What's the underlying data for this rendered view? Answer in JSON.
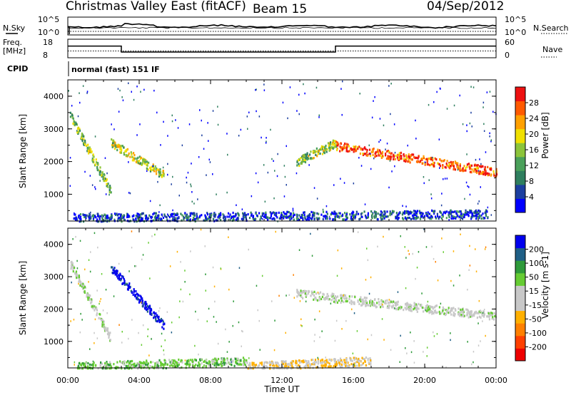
{
  "header": {
    "title": "Christmas Valley East (fitACF)",
    "beam": "Beam 15",
    "date": "04/Sep/2012"
  },
  "sky_panel": {
    "left_label": "N.Sky",
    "right_label": "N.Search",
    "left_ticks": [
      "10^5",
      "10^0"
    ],
    "right_ticks": [
      "10^5",
      "10^0"
    ]
  },
  "freq_panel": {
    "left_label_1": "Freq.",
    "left_label_2": "[MHz]",
    "right_label": "Nave",
    "left_ticks": [
      "18",
      "8"
    ],
    "right_ticks": [
      "60",
      "0"
    ]
  },
  "cpid": {
    "label": "CPID",
    "value": "normal (fast) 151 IF"
  },
  "x_axis": {
    "label": "Time UT",
    "ticks": [
      "00:00",
      "04:00",
      "08:00",
      "12:00",
      "16:00",
      "20:00",
      "00:00"
    ]
  },
  "chart_data": [
    {
      "type": "heatmap",
      "panel": "power",
      "ylabel": "Slant Range [km]",
      "yticks": [
        1000,
        2000,
        3000,
        4000
      ],
      "ylim": [
        180,
        4500
      ],
      "xlim": [
        0,
        24
      ],
      "colorbar_label": "Power [dB]",
      "colorbar_ticks": [
        "4",
        "8",
        "12",
        "16",
        "20",
        "24",
        "28"
      ],
      "colorscale": [
        "#0000ff",
        "#1c3fa0",
        "#2f7f5f",
        "#4aa05a",
        "#8cc43a",
        "#f0e000",
        "#ffa000",
        "#ff5a00",
        "#ee1111"
      ],
      "features": [
        {
          "name": "early arc",
          "t_range": [
            0.1,
            2.4
          ],
          "range_km": [
            3450,
            1100
          ],
          "level": 0.45
        },
        {
          "name": "loop",
          "t_range": [
            2.4,
            5.4
          ],
          "range_km": [
            2600,
            1600
          ],
          "level": 0.55
        },
        {
          "name": "ground scatter",
          "t_range": [
            0.3,
            23.5
          ],
          "range_km": [
            300,
            420
          ],
          "level": 0.15
        },
        {
          "name": "afternoon band",
          "t_range": [
            12.8,
            15.0
          ],
          "range_km": [
            2000,
            2600
          ],
          "level": 0.5
        },
        {
          "name": "evening band",
          "t_range": [
            15.0,
            24.0
          ],
          "range_km": [
            2500,
            1700
          ],
          "level": 0.85
        }
      ]
    },
    {
      "type": "heatmap",
      "panel": "velocity",
      "ylabel": "Slant Range [km]",
      "yticks": [
        1000,
        2000,
        3000,
        4000
      ],
      "ylim": [
        180,
        4500
      ],
      "xlim": [
        0,
        24
      ],
      "colorbar_label": "Velocity [m s-1]",
      "colorbar_ticks": [
        "200",
        "100",
        "50",
        "15",
        "-15",
        "-50",
        "-100",
        "-200"
      ],
      "colorscale": [
        "#0000ee",
        "#1f5f86",
        "#2e9a3a",
        "#66cc33",
        "#c8c8c8",
        "#c8c8c8",
        "#ffb000",
        "#ff8000",
        "#ff4000",
        "#ee0000"
      ],
      "features": [
        {
          "name": "blue loop",
          "t_range": [
            2.4,
            5.4
          ],
          "range_km": [
            3300,
            1500
          ],
          "velocity": 220
        },
        {
          "name": "early arc",
          "t_range": [
            0.1,
            2.4
          ],
          "range_km": [
            3450,
            1100
          ],
          "velocity": 5
        },
        {
          "name": "green ground",
          "t_range": [
            0.5,
            10
          ],
          "range_km": [
            250,
            400
          ],
          "velocity": 30
        },
        {
          "name": "orange ground",
          "t_range": [
            10,
            17
          ],
          "range_km": [
            250,
            420
          ],
          "velocity": -45
        },
        {
          "name": "grey bands",
          "t_range": [
            12.8,
            24
          ],
          "range_km": [
            2500,
            1800
          ],
          "velocity": 0
        }
      ]
    }
  ],
  "sky_series": {
    "sky_level": [
      0.72,
      0.7
    ],
    "search_level": 0.45
  },
  "freq_series": {
    "segments": [
      {
        "t": [
          0.0,
          3.0
        ],
        "freq_mhz": 14.9
      },
      {
        "t": [
          3.0,
          15.0
        ],
        "freq_mhz": 10.2
      },
      {
        "t": [
          15.0,
          24.0
        ],
        "freq_mhz": 14.9
      }
    ],
    "nave_dotted": 22
  },
  "colors": {
    "axis": "#000000",
    "ground_scatter_grey": "#bdbdbd"
  }
}
